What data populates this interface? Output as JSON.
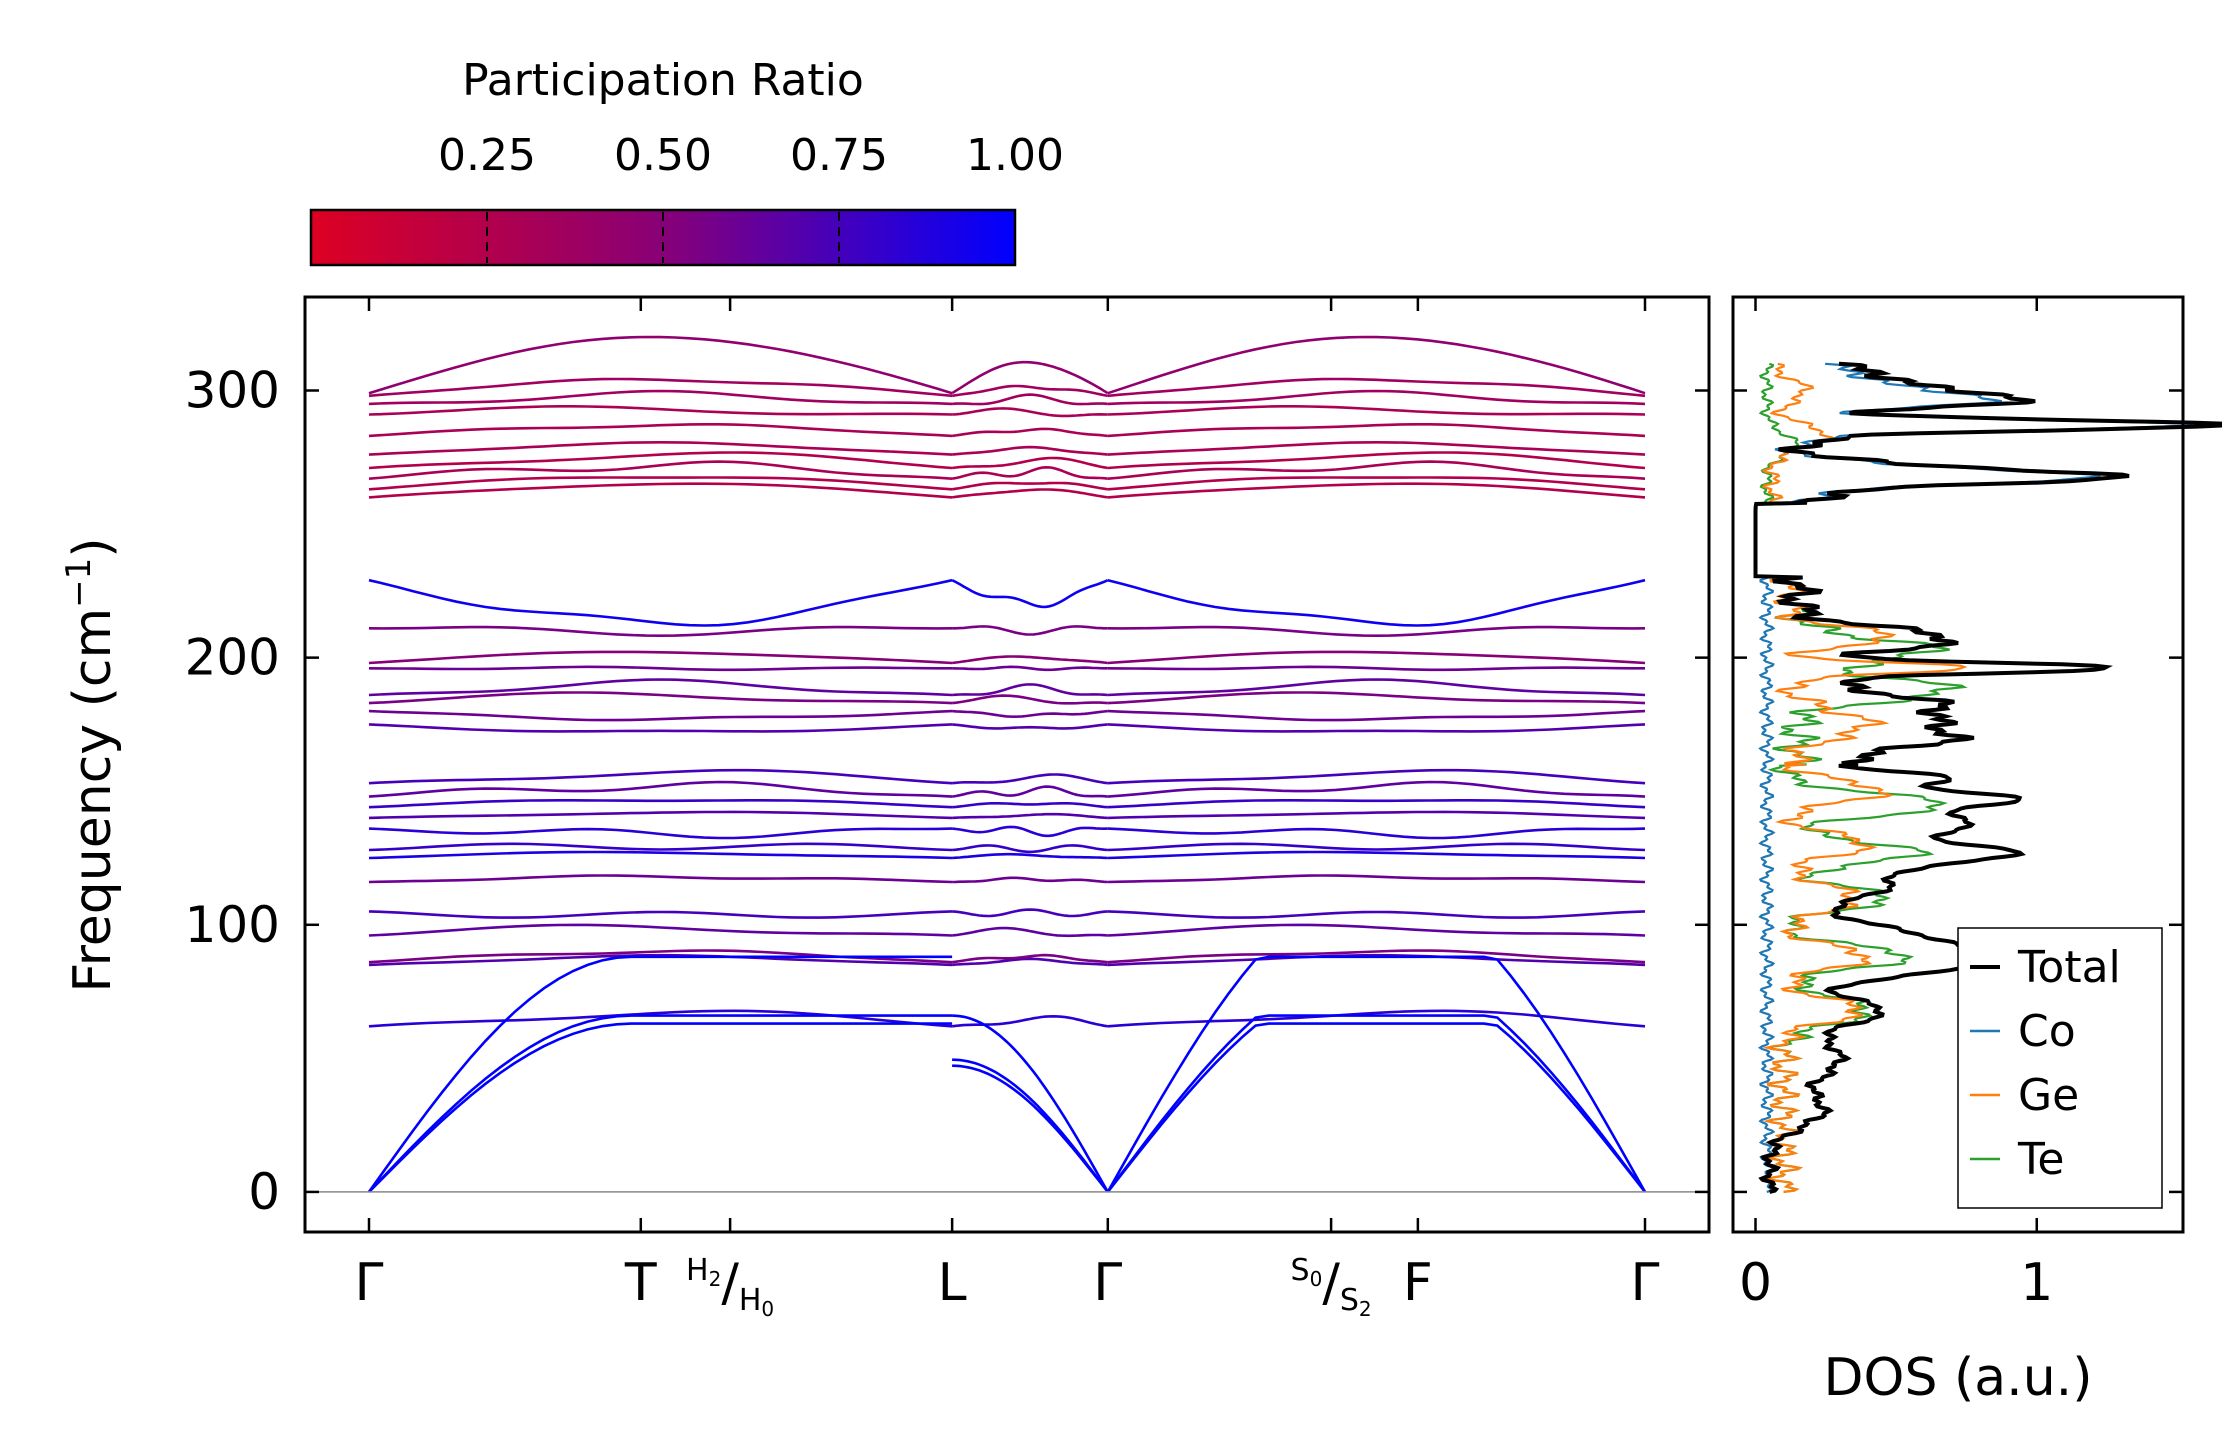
{
  "chart_data": [
    {
      "type": "line",
      "name": "phonon-band-structure",
      "title": "",
      "ylabel": "Frequency (cm",
      "ylabel_sup": "−1",
      "ylabel_close": ")",
      "ylim": [
        -15,
        335
      ],
      "yticks": [
        0,
        100,
        200,
        300
      ],
      "ytick_labels": [
        "0",
        "100",
        "200",
        "300"
      ],
      "xticks": [
        {
          "pos": 0.0,
          "label": "Γ"
        },
        {
          "pos": 0.213,
          "label": "T"
        },
        {
          "pos": 0.283,
          "label": "",
          "hsym": true
        },
        {
          "pos": 0.457,
          "label": "L"
        },
        {
          "pos": 0.579,
          "label": "Γ"
        },
        {
          "pos": 0.754,
          "label": "",
          "ssym": true
        },
        {
          "pos": 0.822,
          "label": "F"
        },
        {
          "pos": 1.0,
          "label": "Γ"
        }
      ],
      "special_labels": {
        "h_num": "H",
        "h_num_sub": "2",
        "h_den": "H",
        "h_den_sub": "0",
        "s_num": "S",
        "s_num_sub": "0",
        "s_den": "S",
        "s_den_sub": "2"
      },
      "band_color_scale": {
        "label": "Participation Ratio",
        "min_color": "#dd0022",
        "mid_color": "#880077",
        "max_color": "#0000ff",
        "ticks": [
          0.25,
          0.5,
          0.75,
          1.0
        ],
        "tick_labels": [
          "0.25",
          "0.50",
          "0.75",
          "1.00"
        ]
      },
      "acoustic_branches": [
        {
          "max": 88,
          "pr": 1.0
        },
        {
          "max": 66,
          "pr": 1.0
        },
        {
          "max": 63,
          "pr": 1.0
        }
      ],
      "optical_bands": [
        {
          "gamma": 62,
          "mid": 67,
          "pr": 0.85
        },
        {
          "gamma": 85,
          "mid": 88,
          "pr": 0.7
        },
        {
          "gamma": 86,
          "mid": 90,
          "pr": 0.55
        },
        {
          "gamma": 96,
          "mid": 99,
          "pr": 0.65
        },
        {
          "gamma": 105,
          "mid": 103,
          "pr": 0.75
        },
        {
          "gamma": 116,
          "mid": 118,
          "pr": 0.6
        },
        {
          "gamma": 125,
          "mid": 127,
          "pr": 0.9
        },
        {
          "gamma": 128,
          "mid": 130,
          "pr": 0.8
        },
        {
          "gamma": 136,
          "mid": 134,
          "pr": 0.85
        },
        {
          "gamma": 140,
          "mid": 142,
          "pr": 0.7
        },
        {
          "gamma": 144,
          "mid": 147,
          "pr": 0.8
        },
        {
          "gamma": 148,
          "mid": 152,
          "pr": 0.65
        },
        {
          "gamma": 153,
          "mid": 157,
          "pr": 0.75
        },
        {
          "gamma": 175,
          "mid": 172,
          "pr": 0.7
        },
        {
          "gamma": 180,
          "mid": 177,
          "pr": 0.6
        },
        {
          "gamma": 183,
          "mid": 186,
          "pr": 0.55
        },
        {
          "gamma": 186,
          "mid": 190,
          "pr": 0.65
        },
        {
          "gamma": 196,
          "mid": 196,
          "pr": 0.6
        },
        {
          "gamma": 198,
          "mid": 202,
          "pr": 0.5
        },
        {
          "gamma": 211,
          "mid": 210,
          "pr": 0.55
        },
        {
          "gamma": 229,
          "mid": 213,
          "pr": 0.95
        },
        {
          "gamma": 260,
          "mid": 265,
          "pr": 0.25
        },
        {
          "gamma": 263,
          "mid": 268,
          "pr": 0.25
        },
        {
          "gamma": 267,
          "mid": 272,
          "pr": 0.3
        },
        {
          "gamma": 271,
          "mid": 276,
          "pr": 0.25
        },
        {
          "gamma": 276,
          "mid": 280,
          "pr": 0.3
        },
        {
          "gamma": 283,
          "mid": 287,
          "pr": 0.3
        },
        {
          "gamma": 291,
          "mid": 293,
          "pr": 0.3
        },
        {
          "gamma": 295,
          "mid": 298,
          "pr": 0.35
        },
        {
          "gamma": 298,
          "mid": 304,
          "pr": 0.35
        },
        {
          "gamma": 299,
          "mid": 320,
          "pr": 0.45
        }
      ]
    },
    {
      "type": "line",
      "name": "density-of-states",
      "xlabel": "DOS (a.u.)",
      "xlim": [
        -0.08,
        1.52
      ],
      "xticks": [
        0,
        1
      ],
      "xtick_labels": [
        "0",
        "1"
      ],
      "ylim": [
        -15,
        335
      ],
      "series": [
        {
          "name": "Total",
          "color": "#000000",
          "peaks": [
            [
              30,
              0.18,
              6
            ],
            [
              50,
              0.25,
              8
            ],
            [
              68,
              0.38,
              5
            ],
            [
              85,
              0.62,
              5
            ],
            [
              95,
              0.5,
              6
            ],
            [
              115,
              0.42,
              6
            ],
            [
              127,
              0.8,
              4
            ],
            [
              138,
              0.7,
              4
            ],
            [
              147,
              0.82,
              3
            ],
            [
              155,
              0.6,
              3
            ],
            [
              170,
              0.52,
              5
            ],
            [
              182,
              0.48,
              5
            ],
            [
              196,
              1.08,
              2
            ],
            [
              207,
              0.55,
              4
            ],
            [
              268,
              1.08,
              3
            ],
            [
              287,
              1.45,
              2
            ],
            [
              297,
              0.78,
              3
            ],
            [
              305,
              0.3,
              3
            ]
          ],
          "ranges": [
            [
              0,
              160,
              0.05
            ],
            [
              160,
              230,
              0.15
            ],
            [
              258,
              310,
              0.18
            ]
          ]
        },
        {
          "name": "Co",
          "color": "#1f77b4",
          "peaks": [
            [
              268,
              1.02,
              3
            ],
            [
              287,
              1.35,
              2
            ],
            [
              297,
              0.7,
              3
            ],
            [
              305,
              0.25,
              3
            ]
          ],
          "ranges": [
            [
              0,
              230,
              0.04
            ],
            [
              258,
              310,
              0.15
            ]
          ]
        },
        {
          "name": "Ge",
          "color": "#ff7f0e",
          "peaks": [
            [
              68,
              0.28,
              4
            ],
            [
              88,
              0.3,
              4
            ],
            [
              110,
              0.25,
              5
            ],
            [
              130,
              0.3,
              4
            ],
            [
              150,
              0.35,
              4
            ],
            [
              175,
              0.28,
              5
            ],
            [
              196,
              0.62,
              2
            ],
            [
              208,
              0.38,
              3
            ],
            [
              283,
              0.2,
              4
            ],
            [
              300,
              0.12,
              4
            ]
          ],
          "ranges": [
            [
              0,
              160,
              0.1
            ],
            [
              160,
              230,
              0.12
            ],
            [
              258,
              310,
              0.06
            ]
          ]
        },
        {
          "name": "Te",
          "color": "#2ca02c",
          "peaks": [
            [
              68,
              0.3,
              5
            ],
            [
              88,
              0.45,
              4
            ],
            [
              110,
              0.38,
              4
            ],
            [
              127,
              0.48,
              4
            ],
            [
              145,
              0.58,
              4
            ],
            [
              188,
              0.55,
              4
            ],
            [
              203,
              0.48,
              4
            ],
            [
              280,
              0.1,
              4
            ]
          ],
          "ranges": [
            [
              0,
              160,
              0.1
            ],
            [
              160,
              230,
              0.15
            ],
            [
              258,
              310,
              0.04
            ]
          ]
        }
      ],
      "legend": {
        "placement": "lower-right",
        "entries": [
          "Total",
          "Co",
          "Ge",
          "Te"
        ]
      }
    }
  ]
}
